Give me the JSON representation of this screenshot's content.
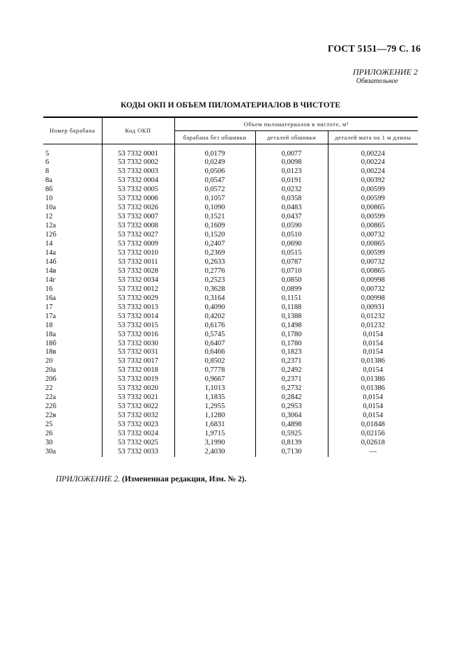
{
  "header": {
    "gost": "ГОСТ 5151—79 С. 16",
    "appendix": "ПРИЛОЖЕНИЕ 2",
    "mandatory": "Обязательное"
  },
  "title": "КОДЫ ОКП И ОБЪЕМ ПИЛОМАТЕРИАЛОВ В ЧИСТОТЕ",
  "table": {
    "col_drum": "Номер барабана",
    "col_code": "Код ОКП",
    "col_group": "Объем пиломатериалов в чистоте, м³",
    "col_sub": [
      "барабана без обшивки",
      "деталей обшивки",
      "деталей мата на 1 м длины"
    ],
    "rows": [
      [
        "5",
        "53 7332 0001",
        "0,0179",
        "0,0077",
        "0,00224"
      ],
      [
        "6",
        "53 7332 0002",
        "0,0249",
        "0,0098",
        "0,00224"
      ],
      [
        "8",
        "53 7332 0003",
        "0,0506",
        "0,0123",
        "0,00224"
      ],
      [
        "8а",
        "53 7332 0004",
        "0,0547",
        "0,0191",
        "0,00392"
      ],
      [
        "8б",
        "53 7332 0005",
        "0,0572",
        "0,0232",
        "0,00599"
      ],
      [
        "10",
        "53 7332 0006",
        "0,1057",
        "0,0358",
        "0,00599"
      ],
      [
        "10а",
        "53 7332 0026",
        "0,1090",
        "0,0483",
        "0,00865"
      ],
      [
        "12",
        "53 7332 0007",
        "0,1521",
        "0,0437",
        "0,00599"
      ],
      [
        "12а",
        "53 7332 0008",
        "0,1609",
        "0,0590",
        "0,00865"
      ],
      [
        "12б",
        "53 7332 0027",
        "0,1520",
        "0,0510",
        "0,00732"
      ],
      [
        "14",
        "53 7332 0009",
        "0,2407",
        "0,0690",
        "0,00865"
      ],
      [
        "14а",
        "53 7332 0010",
        "0,2369",
        "0,0515",
        "0,00599"
      ],
      [
        "14б",
        "53 7332 0011",
        "0,2633",
        "0,0787",
        "0,00732"
      ],
      [
        "14в",
        "53 7332 0028",
        "0,2776",
        "0,0710",
        "0,00865"
      ],
      [
        "14г",
        "53 7332 0034",
        "0,2523",
        "0,0850",
        "0,00998"
      ],
      [
        "16",
        "53 7332 0012",
        "0,3628",
        "0,0899",
        "0,00732"
      ],
      [
        "16а",
        "53 7332 0029",
        "0,3164",
        "0,1151",
        "0,00998"
      ],
      [
        "17",
        "53 7332 0013",
        "0,4090",
        "0,1188",
        "0,00931"
      ],
      [
        "17а",
        "53 7332 0014",
        "0,4202",
        "0,1388",
        "0,01232"
      ],
      [
        "18",
        "53 7332 0015",
        "0,6176",
        "0,1498",
        "0,01232"
      ],
      [
        "18а",
        "53 7332 0016",
        "0,5745",
        "0,1780",
        "0,0154"
      ],
      [
        "18б",
        "53 7332 0030",
        "0,6407",
        "0,1780",
        "0,0154"
      ],
      [
        "18в",
        "53 7332 0031",
        "0,6466",
        "0,1823",
        "0,0154"
      ],
      [
        "20",
        "53 7332 0017",
        "0,8502",
        "0,2371",
        "0,01386"
      ],
      [
        "20а",
        "53 7332 0018",
        "0,7778",
        "0,2492",
        "0,0154"
      ],
      [
        "20б",
        "53 7332 0019",
        "0,9667",
        "0,2371",
        "0,01386"
      ],
      [
        "22",
        "53 7332 0020",
        "1,1013",
        "0,2732",
        "0,01386"
      ],
      [
        "22а",
        "53 7332 0021",
        "1,1835",
        "0,2842",
        "0,0154"
      ],
      [
        "22б",
        "53 7332 0022",
        "1,2955",
        "0,2953",
        "0,0154"
      ],
      [
        "22в",
        "53 7332 0032",
        "1,1280",
        "0,3064",
        "0,0154"
      ],
      [
        "25",
        "53 7332 0023",
        "1,6831",
        "0,4898",
        "0,01848"
      ],
      [
        "26",
        "53 7332 0024",
        "1,9715",
        "0,5925",
        "0,02156"
      ],
      [
        "30",
        "53 7332 0025",
        "3,1990",
        "0,8139",
        "0,02618"
      ],
      [
        "30а",
        "53 7332 0033",
        "2,4030",
        "0,7130",
        "—"
      ]
    ]
  },
  "footer": {
    "italic": "ПРИЛОЖЕНИЕ 2.",
    "bold": "(Измененная редакция, Изм. № 2)."
  }
}
